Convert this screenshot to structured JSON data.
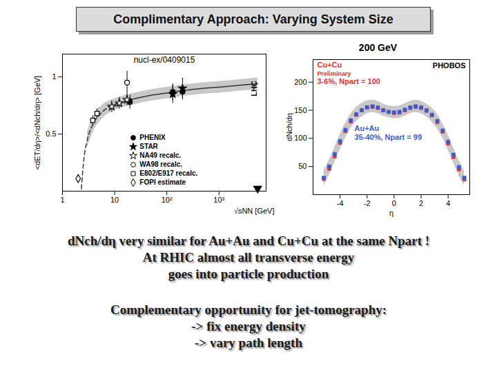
{
  "slide": {
    "title": "Complimentary Approach: Varying System Size",
    "paragraphs": [
      [
        "dNch/dη very similar for Au+Au and Cu+Cu at the same Npart !",
        "At RHIC almost all transverse energy",
        "goes into particle production"
      ],
      [
        "Complementary opportunity for jet-tomography:",
        "-> fix energy density",
        "-> vary path length"
      ]
    ]
  },
  "chart_data": [
    {
      "type": "scatter",
      "log": "x",
      "x_label": "√sNN [GeV]",
      "y_label": "<dET/dη>/<dNch/dη> [GeV]",
      "xlim": [
        1,
        8000
      ],
      "ylim": [
        0,
        1.2
      ],
      "xticks": [
        1,
        10,
        {
          "value": 100,
          "label": "10²"
        },
        {
          "value": 1000,
          "label": "10³"
        }
      ],
      "yticks": [
        0.5,
        1
      ],
      "legend": "bottom",
      "annotations": [
        {
          "text": "nucl-ex/0409015"
        },
        {
          "text": "LHC",
          "x": 5500
        }
      ],
      "band": {
        "color": "#c8c8c8",
        "x": [
          3,
          4,
          6,
          10,
          20,
          50,
          100,
          200,
          500,
          1000,
          3000,
          5500
        ],
        "lo": [
          0.38,
          0.53,
          0.64,
          0.71,
          0.75,
          0.79,
          0.81,
          0.83,
          0.85,
          0.86,
          0.88,
          0.89
        ],
        "hi": [
          0.52,
          0.67,
          0.76,
          0.81,
          0.85,
          0.89,
          0.91,
          0.93,
          0.95,
          0.96,
          0.98,
          0.99
        ]
      },
      "series": [
        {
          "type": "line",
          "line_style": "dashed",
          "color": "#333333",
          "x": [
            2.3,
            2.6,
            3,
            4,
            6,
            10
          ],
          "values": [
            0.02,
            0.3,
            0.45,
            0.6,
            0.7,
            0.76
          ]
        },
        {
          "type": "line",
          "line_style": "solid",
          "color": "#333333",
          "x": [
            10,
            20,
            50,
            100,
            200,
            500,
            1000,
            3000,
            5500
          ],
          "values": [
            0.76,
            0.8,
            0.84,
            0.86,
            0.88,
            0.9,
            0.91,
            0.93,
            0.94
          ]
        },
        {
          "name": "PHENIX",
          "type": "scatter",
          "marker": "circle",
          "color": "#000000",
          "x": [
            19.6,
            130,
            200
          ],
          "values": [
            0.78,
            0.87,
            0.87
          ],
          "errors": [
            0.06,
            0.07,
            0.07
          ]
        },
        {
          "name": "STAR",
          "type": "scatter",
          "marker": "star",
          "color": "#000000",
          "x": [
            130,
            200
          ],
          "values": [
            0.85,
            0.9
          ],
          "errors": [
            0.08,
            0.09
          ]
        },
        {
          "name": "NA49 recalc.",
          "type": "scatter",
          "marker": "open-star",
          "color": "#000000",
          "x": [
            8.8,
            12.3,
            17.3
          ],
          "values": [
            0.74,
            0.77,
            0.8
          ],
          "errors": [
            0.05,
            0.05,
            0.05
          ]
        },
        {
          "name": "WA98 recalc.",
          "type": "scatter",
          "marker": "open-circle",
          "color": "#000000",
          "x": [
            17.3
          ],
          "values": [
            0.95
          ],
          "errors": [
            0.1
          ]
        },
        {
          "name": "E802/E917 recalc.",
          "type": "scatter",
          "marker": "open-square",
          "color": "#000000",
          "x": [
            3.8,
            4.6
          ],
          "values": [
            0.62,
            0.68
          ],
          "errors": [
            0.04,
            0.04
          ]
        },
        {
          "name": "FOPI estimate",
          "type": "scatter",
          "marker": "open-diamond",
          "color": "#000000",
          "x": [
            2
          ],
          "values": [
            0.11
          ],
          "errors": [
            0
          ]
        }
      ]
    },
    {
      "type": "scatter",
      "title": "200 GeV",
      "subtitle": "PHOBOS",
      "x_label": "η",
      "y_label": "dNch/dη",
      "xlim": [
        -6,
        5.6
      ],
      "ylim": [
        0,
        240
      ],
      "xticks": [
        -4,
        -2,
        0,
        2,
        4
      ],
      "yticks": [
        50,
        100,
        150,
        200
      ],
      "marker": "square",
      "band": {
        "color": "#c8c8c8",
        "x": [
          -5.2,
          -4.8,
          -4.4,
          -4.0,
          -3.6,
          -3.2,
          -2.8,
          -2.4,
          -2.0,
          -1.6,
          -1.2,
          -0.8,
          -0.4,
          0,
          0.4,
          0.8,
          1.2,
          1.6,
          2.0,
          2.4,
          2.8,
          3.2,
          3.6,
          4.0,
          4.4,
          4.8,
          5.2
        ],
        "lo": [
          15,
          35,
          57,
          80,
          101,
          118,
          130,
          138,
          144,
          146,
          144,
          140,
          137,
          135,
          136,
          140,
          144,
          146,
          144,
          138,
          129,
          117,
          100,
          79,
          56,
          34,
          15
        ],
        "hi": [
          43,
          62,
          84,
          107,
          127,
          144,
          155,
          162,
          167,
          168,
          166,
          161,
          158,
          157,
          158,
          162,
          166,
          168,
          166,
          161,
          154,
          143,
          126,
          106,
          83,
          61,
          42
        ]
      },
      "series": [
        {
          "name": "Cu+Cu",
          "note": "Preliminary",
          "subtitle": "3-6%, Npart = 100",
          "color": "#e8302c",
          "x": [
            -5.2,
            -4.8,
            -4.4,
            -4.0,
            -3.6,
            -3.2,
            -2.8,
            -2.4,
            -2.0,
            -1.6,
            -1.2,
            -0.8,
            -0.4,
            0,
            0.4,
            0.8,
            1.2,
            1.6,
            2.0,
            2.4,
            2.8,
            3.2,
            3.6,
            4.0,
            4.4,
            4.8,
            5.2
          ],
          "values": [
            28,
            46,
            68,
            92,
            113,
            130,
            142,
            150,
            155,
            156,
            154,
            150,
            147,
            145,
            146,
            150,
            154,
            156,
            154,
            149,
            141,
            129,
            112,
            91,
            67,
            45,
            27
          ]
        },
        {
          "name": "Au+Au",
          "subtitle": "35-40%, Npart = 99",
          "color": "#3a5bd0",
          "x": [
            -5.2,
            -4.8,
            -4.4,
            -4.0,
            -3.6,
            -3.2,
            -2.8,
            -2.4,
            -2.0,
            -1.6,
            -1.2,
            -0.8,
            -0.4,
            0,
            0.4,
            0.8,
            1.2,
            1.6,
            2.0,
            2.4,
            2.8,
            3.2,
            3.6,
            4.0,
            4.4,
            4.8,
            5.2
          ],
          "values": [
            30,
            50,
            72,
            95,
            115,
            132,
            143,
            150,
            155,
            157,
            155,
            150,
            147,
            146,
            147,
            151,
            155,
            157,
            155,
            150,
            142,
            131,
            114,
            94,
            71,
            49,
            30
          ]
        }
      ]
    }
  ]
}
